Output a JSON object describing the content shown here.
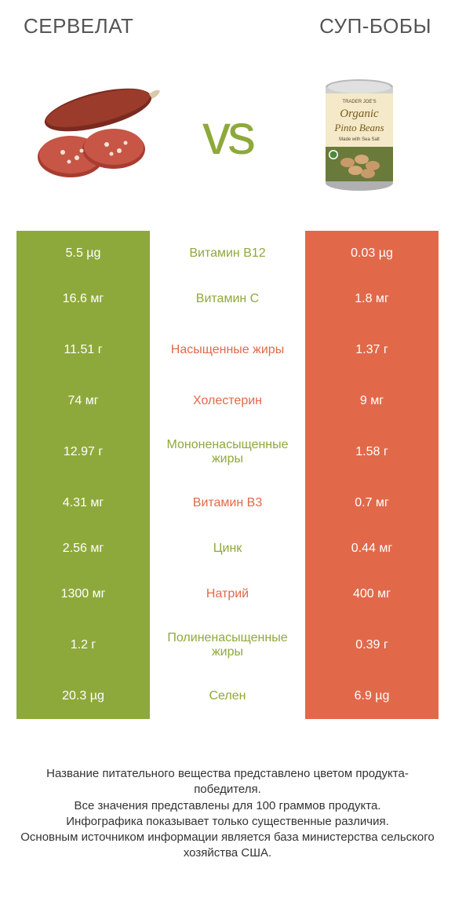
{
  "header": {
    "left_title": "СЕРВЕЛАТ",
    "right_title": "СУП-БОБЫ"
  },
  "vs_label": "vs",
  "colors": {
    "green": "#8ea93b",
    "orange": "#e1694a",
    "green_text": "#8ea93b",
    "orange_text": "#e1694a",
    "heading": "#555555",
    "body_text": "#333333",
    "background": "#ffffff"
  },
  "rows": [
    {
      "left": "5.5 µg",
      "mid": "Витамин B12",
      "right": "0.03 µg",
      "mid_color": "green",
      "tall": false
    },
    {
      "left": "16.6 мг",
      "mid": "Витамин C",
      "right": "1.8 мг",
      "mid_color": "green",
      "tall": false
    },
    {
      "left": "11.51 г",
      "mid": "Насыщенные жиры",
      "right": "1.37 г",
      "mid_color": "orange",
      "tall": true
    },
    {
      "left": "74 мг",
      "mid": "Холестерин",
      "right": "9 мг",
      "mid_color": "orange",
      "tall": false
    },
    {
      "left": "12.97 г",
      "mid": "Мононенасыщенные жиры",
      "right": "1.58 г",
      "mid_color": "green",
      "tall": true
    },
    {
      "left": "4.31 мг",
      "mid": "Витамин B3",
      "right": "0.7 мг",
      "mid_color": "orange",
      "tall": false
    },
    {
      "left": "2.56 мг",
      "mid": "Цинк",
      "right": "0.44 мг",
      "mid_color": "green",
      "tall": false
    },
    {
      "left": "1300 мг",
      "mid": "Натрий",
      "right": "400 мг",
      "mid_color": "orange",
      "tall": false
    },
    {
      "left": "1.2 г",
      "mid": "Полиненасыщенные жиры",
      "right": "0.39 г",
      "mid_color": "green",
      "tall": true
    },
    {
      "left": "20.3 µg",
      "mid": "Селен",
      "right": "6.9 µg",
      "mid_color": "green",
      "tall": false
    }
  ],
  "footer_lines": [
    "Название питательного вещества представлено цветом продукта-победителя.",
    "Все значения представлены для 100 граммов продукта.",
    "Инфографика показывает только существенные различия.",
    "Основным источником информации является база министерства сельского хозяйства США."
  ],
  "can_label": {
    "brand": "TRADER JOE'S",
    "line1": "Organic",
    "line2": "Pinto Beans",
    "sub": "Made with Sea Salt"
  }
}
